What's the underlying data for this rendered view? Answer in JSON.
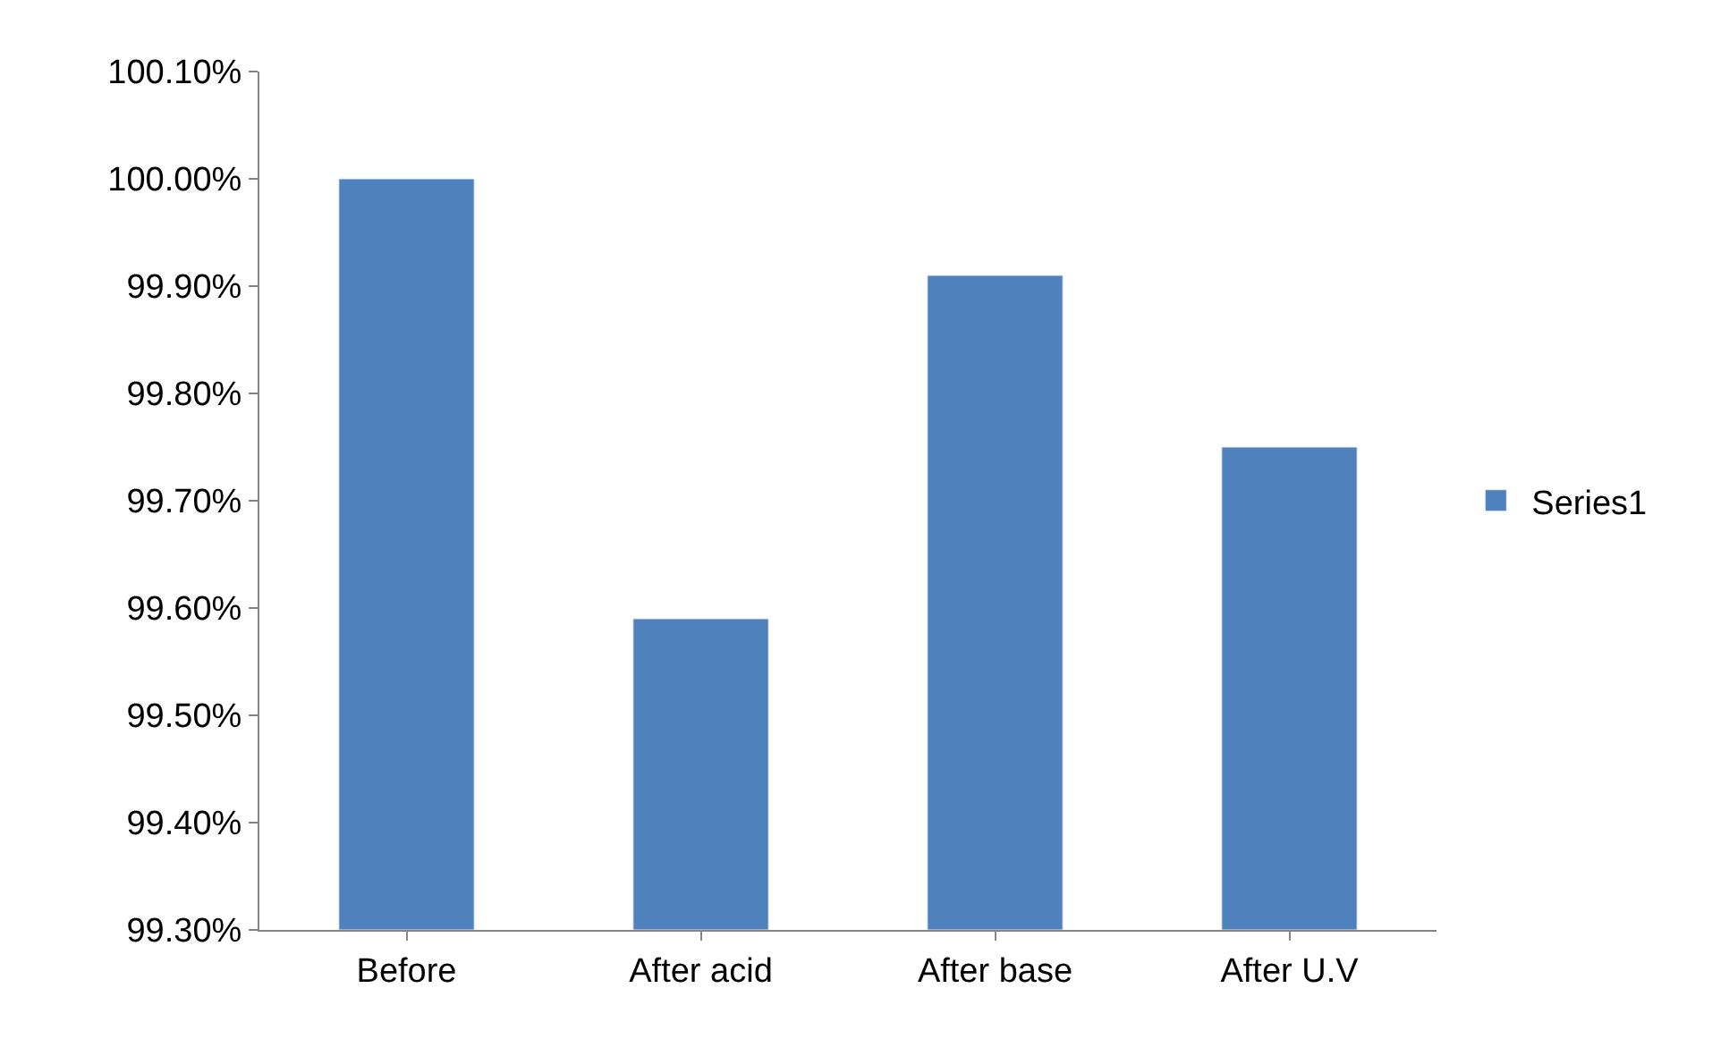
{
  "chart_data": {
    "type": "bar",
    "categories": [
      "Before",
      "After acid",
      "After base",
      "After U.V"
    ],
    "series": [
      {
        "name": "Series1",
        "color": "#4f81bd",
        "values": [
          100.0,
          99.59,
          99.91,
          99.75
        ]
      }
    ],
    "ylim": [
      99.3,
      100.1
    ],
    "yticks": [
      {
        "value": 99.3,
        "label": "99.30%"
      },
      {
        "value": 99.4,
        "label": "99.40%"
      },
      {
        "value": 99.5,
        "label": "99.50%"
      },
      {
        "value": 99.6,
        "label": "99.60%"
      },
      {
        "value": 99.7,
        "label": "99.70%"
      },
      {
        "value": 99.8,
        "label": "99.80%"
      },
      {
        "value": 99.9,
        "label": "99.90%"
      },
      {
        "value": 100.0,
        "label": "100.00%"
      },
      {
        "value": 100.1,
        "label": "100.10%"
      }
    ],
    "legend": "right"
  }
}
